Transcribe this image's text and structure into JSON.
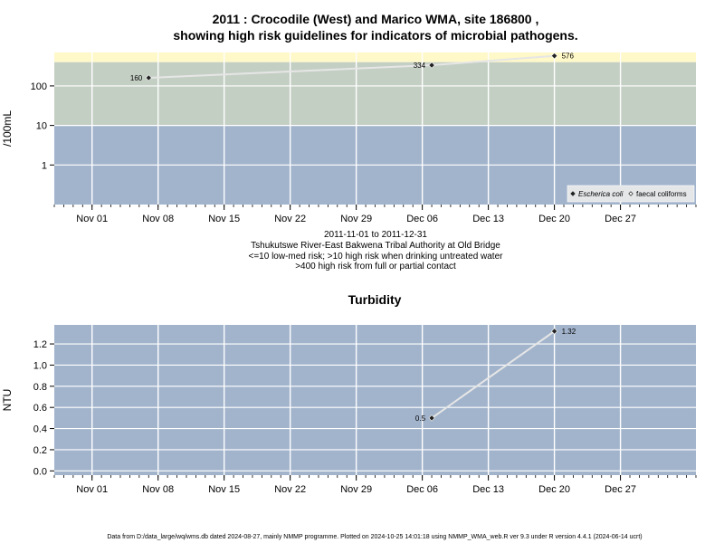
{
  "chart_data": [
    {
      "type": "line",
      "title": "2011 : Crocodile (West) and Marico WMA, site 186800 ,",
      "title_line2": "showing high risk guidelines for indicators of microbial pathogens.",
      "xlabel": "",
      "ylabel": "/100mL",
      "x_range": [
        "2011-10-28",
        "2012-01-04"
      ],
      "x_ticks": [
        "Nov 01",
        "Nov 08",
        "Nov 15",
        "Nov 22",
        "Nov 29",
        "Dec 06",
        "Dec 13",
        "Dec 20",
        "Dec 27"
      ],
      "x_tick_dates": [
        "2011-11-01",
        "2011-11-08",
        "2011-11-15",
        "2011-11-22",
        "2011-11-29",
        "2011-12-06",
        "2011-12-13",
        "2011-12-20",
        "2011-12-27"
      ],
      "y_scale": "log",
      "y_range": [
        0.1,
        700
      ],
      "y_ticks": [
        "1",
        "10",
        "100"
      ],
      "y_tick_values": [
        1,
        10,
        100
      ],
      "bands": [
        {
          "from": 0.1,
          "to": 10,
          "color": "#a2b4cc"
        },
        {
          "from": 10,
          "to": 400,
          "color": "#c4cfc4"
        },
        {
          "from": 400,
          "to": 700,
          "color": "#fff8c8"
        }
      ],
      "grid": true,
      "legend_position": "bottom-right",
      "legend": [
        {
          "label": "Escherica coli",
          "marker": "filled-diamond",
          "italic": true
        },
        {
          "label": "faecal coliforms",
          "marker": "open-diamond",
          "italic": false
        }
      ],
      "series": [
        {
          "name": "Escherica coli",
          "x": [
            "2011-11-07",
            "2011-12-07",
            "2011-12-20"
          ],
          "y": [
            160,
            334,
            576
          ],
          "labels": [
            "160",
            "334",
            "576"
          ]
        }
      ],
      "caption": [
        "2011-11-01 to 2011-12-31",
        "Tshukutswe River-East Bakwena Tribal Authority at Old Bridge",
        "<=10 low-med risk; >10 high risk when drinking untreated water",
        ">400 high risk from full or partial contact"
      ]
    },
    {
      "type": "line",
      "title": "Turbidity",
      "xlabel": "",
      "ylabel": "NTU",
      "x_range": [
        "2011-10-28",
        "2012-01-04"
      ],
      "x_ticks": [
        "Nov 01",
        "Nov 08",
        "Nov 15",
        "Nov 22",
        "Nov 29",
        "Dec 06",
        "Dec 13",
        "Dec 20",
        "Dec 27"
      ],
      "x_tick_dates": [
        "2011-11-01",
        "2011-11-08",
        "2011-11-15",
        "2011-11-22",
        "2011-11-29",
        "2011-12-06",
        "2011-12-13",
        "2011-12-20",
        "2011-12-27"
      ],
      "y_scale": "linear",
      "y_range": [
        -0.04,
        1.38
      ],
      "y_ticks": [
        "0.0",
        "0.2",
        "0.4",
        "0.6",
        "0.8",
        "1.0",
        "1.2"
      ],
      "y_tick_values": [
        0,
        0.2,
        0.4,
        0.6,
        0.8,
        1.0,
        1.2
      ],
      "background": "#a2b4cc",
      "grid": true,
      "series": [
        {
          "name": "",
          "x": [
            "2011-12-07",
            "2011-12-20"
          ],
          "y": [
            0.5,
            1.32
          ],
          "labels": [
            "0.5",
            "1.32"
          ]
        }
      ]
    }
  ],
  "footer": "Data from D:/data_large/wq/wms.db dated 2024-08-27, mainly NMMP programme. Plotted on 2024-10-25 14:01:18 using NMMP_WMA_web.R ver 9.3 under R version 4.4.1 (2024-06-14 ucrt)",
  "colors": {
    "grid": "#ffffff",
    "line": "#e6e6e6",
    "marker": "#222222",
    "axis": "#000000"
  }
}
